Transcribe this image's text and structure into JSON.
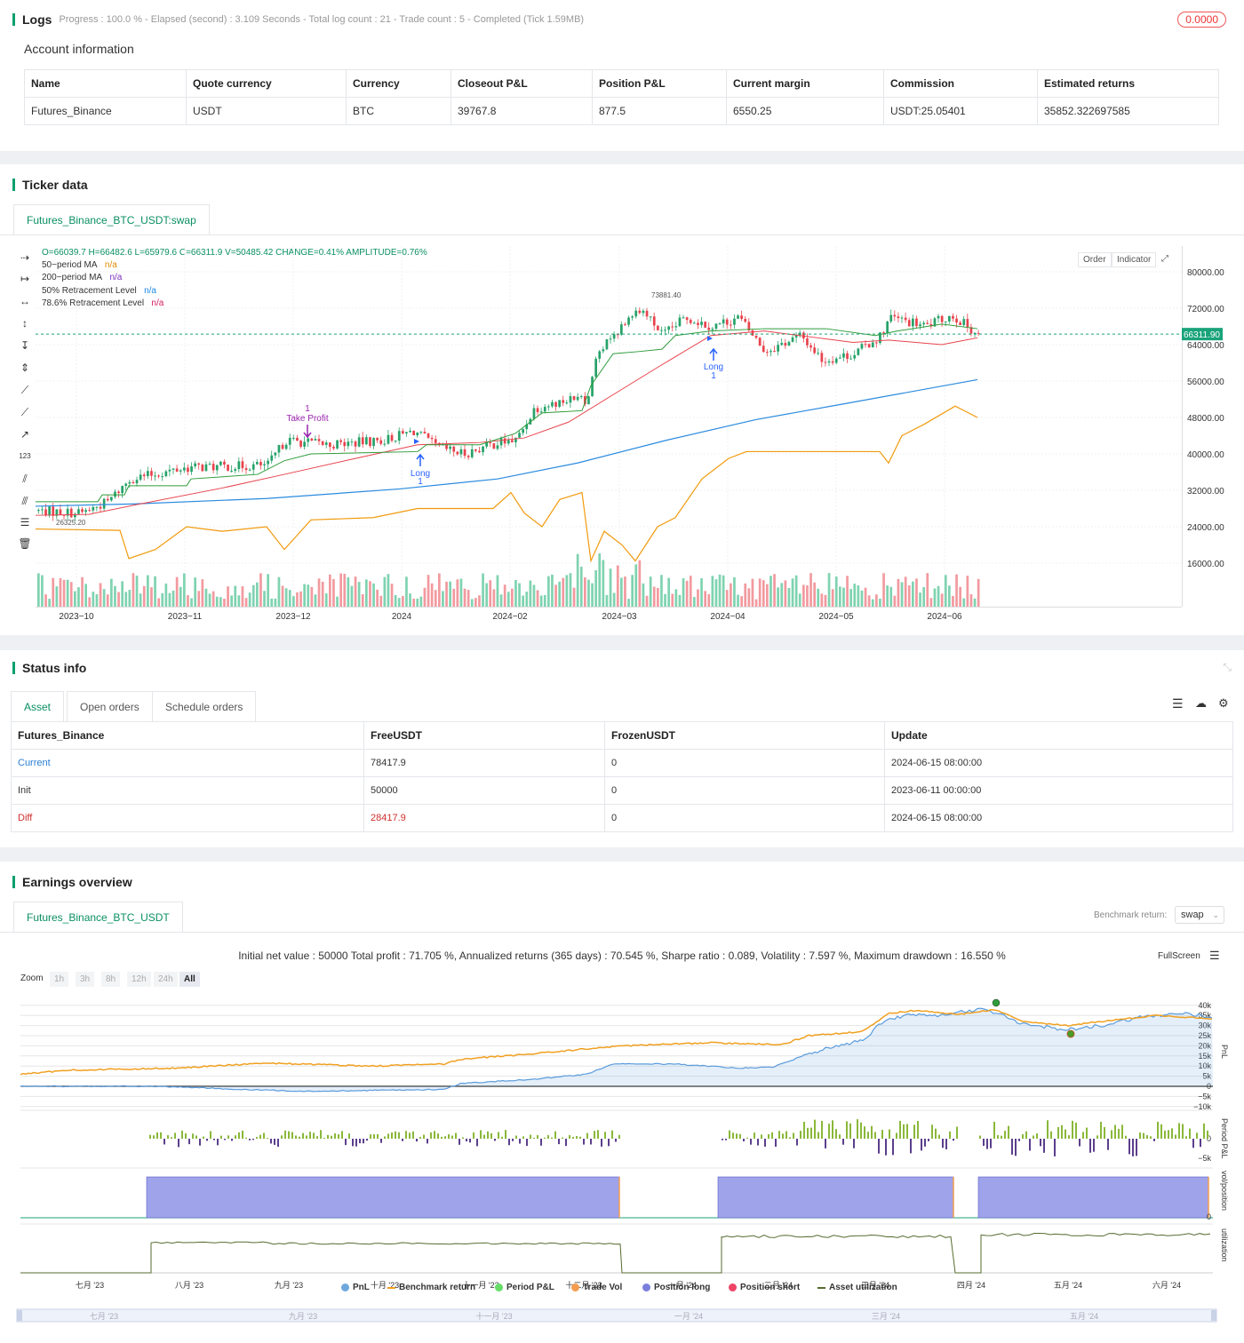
{
  "logs": {
    "title": "Logs",
    "summary": "Progress : 100.0 % - Elapsed (second) : 3.109  Seconds - Total log count : 21 - Trade count : 5 - Completed (Tick 1.59MB)",
    "badge": "0.0000"
  },
  "account": {
    "title": "Account information",
    "headers": [
      "Name",
      "Quote currency",
      "Currency",
      "Closeout P&L",
      "Position P&L",
      "Current margin",
      "Commission",
      "Estimated returns"
    ],
    "row": [
      "Futures_Binance",
      "USDT",
      "BTC",
      "39767.8",
      "877.5",
      "6550.25",
      "USDT:25.05401",
      "35852.322697585"
    ]
  },
  "ticker": {
    "title": "Ticker data",
    "tab": "Futures_Binance_BTC_USDT:swap",
    "ohlc": "O=66039.7 H=66482.6 L=65979.6 C=66311.9 V=50485.42 CHANGE=0.41% AMPLITUDE=0.76%",
    "indicators": [
      {
        "name": "50−period MA",
        "value": "n/a",
        "color": "#e08a00"
      },
      {
        "name": "200−period MA",
        "value": "n/a",
        "color": "#7b2fbe"
      },
      {
        "name": "50% Retracement Level",
        "value": "n/a",
        "color": "#1e88e5"
      },
      {
        "name": "78.6% Retracement Level",
        "value": "n/a",
        "color": "#d81b60"
      }
    ],
    "buttons": {
      "order": "Order",
      "indicator": "Indicator"
    },
    "price_label": "66311.90",
    "high_label": "73881.40",
    "low_label": "26325.20",
    "y_ticks": [
      "80000.00",
      "72000.00",
      "64000.00",
      "56000.00",
      "48000.00",
      "40000.00",
      "32000.00",
      "24000.00",
      "16000.00"
    ],
    "x_ticks": [
      "2023−10",
      "2023−11",
      "2023−12",
      "2024",
      "2024−02",
      "2024−03",
      "2024−04",
      "2024−05",
      "2024−06"
    ],
    "markers": {
      "tp_count": "1",
      "tp_label": "Take Profit",
      "long1_label": "Long",
      "long1_count": "1",
      "long2_label": "Long",
      "long2_count": "1"
    }
  },
  "status": {
    "title": "Status info",
    "tabs": [
      "Asset",
      "Open orders",
      "Schedule orders"
    ],
    "headers": [
      "Futures_Binance",
      "FreeUSDT",
      "FrozenUSDT",
      "Update"
    ],
    "rows": [
      [
        "Current",
        "78417.9",
        "0",
        "2024-06-15 08:00:00"
      ],
      [
        "Init",
        "50000",
        "0",
        "2023-06-11 00:00:00"
      ],
      [
        "Diff",
        "28417.9",
        "0",
        "2024-06-15 08:00:00"
      ]
    ]
  },
  "earnings": {
    "title": "Earnings overview",
    "tab": "Futures_Binance_BTC_USDT",
    "benchmark_label": "Benchmark return:",
    "benchmark_value": "swap",
    "summary": "Initial net value : 50000 Total profit : 71.705 %, Annualized returns (365 days) : 70.545 %, Sharpe ratio : 0.089, Volatility : 7.597 %, Maximum drawdown : 16.550 %",
    "fullscreen": "FullScreen",
    "zoom_label": "Zoom",
    "zoom_options": [
      "1h",
      "3h",
      "8h",
      "12h",
      "24h",
      "All"
    ],
    "pnl_ticks": [
      "40k",
      "35k",
      "30k",
      "25k",
      "20k",
      "15k",
      "10k",
      "5k",
      "0",
      "−5k",
      "−10k"
    ],
    "period_ticks": [
      "0",
      "−5k"
    ],
    "axis_titles": [
      "PnL",
      "Period P&L",
      "vol/position",
      "utilization"
    ],
    "x_ticks": [
      "七月 '23",
      "八月 '23",
      "九月 '23",
      "十月 '23",
      "十一月 '23",
      "十二月 '23",
      "一月 '24",
      "二月 '24",
      "三月 '24",
      "四月 '24",
      "五月 '24",
      "六月 '24"
    ],
    "nav_ticks": [
      "七月 '23",
      "九月 '23",
      "十一月 '23",
      "一月 '24",
      "三月 '24",
      "五月 '24"
    ],
    "legend": [
      {
        "name": "PnL",
        "color": "#6fa8dc"
      },
      {
        "name": "Benchmark return",
        "color": "#f0a020"
      },
      {
        "name": "Period P&L",
        "color": "#66dd66"
      },
      {
        "name": "Trade Vol",
        "color": "#f39c50"
      },
      {
        "name": "Position long",
        "color": "#7b7fdc"
      },
      {
        "name": "Position short",
        "color": "#ee4466"
      },
      {
        "name": "Asset utilization",
        "color": "#556b2f"
      }
    ]
  }
}
